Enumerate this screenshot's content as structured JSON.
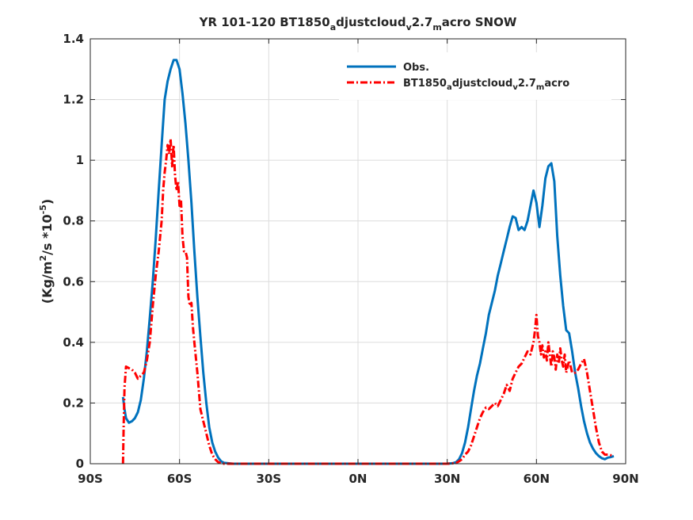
{
  "chart_data": {
    "type": "line",
    "title": {
      "main": "YR 101-120 BT1850",
      "sub1": "a",
      "mid1": "djustcloud",
      "sub2": "v",
      "mid2": "2.7",
      "sub3": "m",
      "tail": "acro SNOW"
    },
    "ylabel": {
      "prefix": "(Kg/m",
      "sup1": "2",
      "mid": "/s *10",
      "sup2": "-5",
      "suffix": ")"
    },
    "xlim": [
      -90,
      90
    ],
    "ylim": [
      0,
      1.4
    ],
    "xticks": [
      -90,
      -60,
      -30,
      0,
      30,
      60,
      90
    ],
    "xtick_labels": [
      "90S",
      "60S",
      "30S",
      "0N",
      "30N",
      "60N",
      "90N"
    ],
    "yticks": [
      0,
      0.2,
      0.4,
      0.6,
      0.8,
      1.0,
      1.2,
      1.4
    ],
    "ytick_labels": [
      "0",
      "0.2",
      "0.4",
      "0.6",
      "0.8",
      "1",
      "1.2",
      "1.4"
    ],
    "grid": true,
    "legend_position": "top-right",
    "series": [
      {
        "name": "Obs.",
        "color": "#0072BD",
        "style": "solid",
        "x": [
          -79,
          -78.5,
          -78,
          -77,
          -76,
          -75,
          -74,
          -73,
          -72,
          -71,
          -70,
          -69,
          -68,
          -67,
          -66,
          -65,
          -64,
          -63,
          -62,
          -61,
          -60,
          -59,
          -58,
          -57,
          -56,
          -55,
          -54,
          -53,
          -52,
          -51,
          -50,
          -49,
          -48,
          -47,
          -46,
          -45,
          -44,
          -43,
          -42,
          -40,
          -30,
          0,
          30,
          32,
          33,
          34,
          35,
          36,
          37,
          38,
          39,
          40,
          41,
          42,
          43,
          44,
          45,
          46,
          47,
          48,
          49,
          50,
          51,
          52,
          53,
          54,
          55,
          56,
          57,
          58,
          59,
          60,
          61,
          62,
          63,
          64,
          65,
          66,
          67,
          68,
          69,
          70,
          71,
          72,
          73,
          74,
          75,
          76,
          77,
          78,
          79,
          80,
          81,
          82,
          83,
          84,
          85,
          86
        ],
        "y": [
          0.22,
          0.18,
          0.15,
          0.135,
          0.14,
          0.15,
          0.17,
          0.21,
          0.28,
          0.37,
          0.48,
          0.6,
          0.74,
          0.9,
          1.05,
          1.2,
          1.26,
          1.3,
          1.33,
          1.33,
          1.3,
          1.22,
          1.12,
          1.0,
          0.86,
          0.7,
          0.55,
          0.42,
          0.3,
          0.2,
          0.12,
          0.07,
          0.04,
          0.02,
          0.008,
          0.003,
          0.002,
          0.001,
          0,
          0,
          0,
          0,
          0,
          0.002,
          0.005,
          0.015,
          0.035,
          0.07,
          0.12,
          0.18,
          0.24,
          0.29,
          0.33,
          0.38,
          0.43,
          0.49,
          0.53,
          0.57,
          0.62,
          0.66,
          0.7,
          0.74,
          0.78,
          0.815,
          0.81,
          0.77,
          0.78,
          0.77,
          0.8,
          0.85,
          0.9,
          0.86,
          0.78,
          0.85,
          0.94,
          0.98,
          0.99,
          0.93,
          0.75,
          0.62,
          0.52,
          0.44,
          0.43,
          0.37,
          0.3,
          0.25,
          0.19,
          0.14,
          0.1,
          0.07,
          0.05,
          0.035,
          0.025,
          0.018,
          0.015,
          0.02,
          0.022,
          0.025
        ]
      },
      {
        "name": "BT1850adjustcloudv2.7macro",
        "name_parts": {
          "a": "BT1850",
          "s1": "a",
          "b": "djustcloud",
          "s2": "v",
          "c": "2.7",
          "s3": "m",
          "d": "acro"
        },
        "color": "#FF0000",
        "style": "dashdot",
        "x": [
          -79,
          -78.8,
          -78.5,
          -78,
          -77,
          -76,
          -75,
          -74,
          -73,
          -72,
          -71,
          -70,
          -69,
          -68,
          -67,
          -66,
          -65.5,
          -65,
          -64.5,
          -64,
          -63.5,
          -63,
          -62.5,
          -62,
          -61.5,
          -61,
          -60.5,
          -60,
          -59.5,
          -59,
          -58.5,
          -58,
          -57.5,
          -57,
          -56.5,
          -56,
          -55.5,
          -55,
          -54.5,
          -54,
          -53.5,
          -53,
          -52,
          -51,
          -50,
          -49,
          -48,
          -47,
          -46,
          -45,
          -44,
          -40,
          -30,
          0,
          30,
          33,
          34,
          35,
          36,
          37,
          38,
          39,
          40,
          41,
          42,
          43,
          44,
          45,
          46,
          47,
          48,
          49,
          50,
          51,
          52,
          53,
          54,
          55,
          56,
          57,
          58,
          59,
          59.5,
          60,
          60.5,
          61,
          61.5,
          62,
          62.5,
          63,
          63.5,
          64,
          64.5,
          65,
          65.5,
          66,
          66.5,
          67,
          67.5,
          68,
          68.5,
          69,
          69.5,
          70,
          71,
          72,
          73,
          74,
          75,
          76,
          77,
          78,
          79,
          80,
          81,
          82,
          83,
          84,
          85,
          86
        ],
        "y": [
          0.0,
          0.12,
          0.25,
          0.32,
          0.315,
          0.31,
          0.3,
          0.28,
          0.29,
          0.3,
          0.34,
          0.4,
          0.52,
          0.62,
          0.7,
          0.8,
          0.9,
          0.96,
          1.0,
          1.05,
          1.02,
          1.07,
          0.98,
          1.05,
          0.95,
          0.9,
          0.93,
          0.85,
          0.87,
          0.75,
          0.7,
          0.7,
          0.68,
          0.55,
          0.52,
          0.53,
          0.45,
          0.4,
          0.35,
          0.3,
          0.24,
          0.18,
          0.14,
          0.1,
          0.06,
          0.03,
          0.015,
          0.005,
          0.002,
          0,
          0,
          0,
          0,
          0,
          0,
          0.002,
          0.008,
          0.015,
          0.03,
          0.04,
          0.06,
          0.09,
          0.12,
          0.15,
          0.17,
          0.185,
          0.18,
          0.19,
          0.2,
          0.19,
          0.21,
          0.23,
          0.26,
          0.24,
          0.28,
          0.3,
          0.32,
          0.33,
          0.35,
          0.37,
          0.36,
          0.4,
          0.44,
          0.49,
          0.42,
          0.4,
          0.36,
          0.39,
          0.35,
          0.37,
          0.34,
          0.4,
          0.36,
          0.32,
          0.37,
          0.35,
          0.31,
          0.36,
          0.33,
          0.38,
          0.34,
          0.32,
          0.36,
          0.3,
          0.34,
          0.3,
          0.3,
          0.31,
          0.33,
          0.345,
          0.3,
          0.24,
          0.18,
          0.12,
          0.07,
          0.04,
          0.03,
          0.03,
          0.028,
          0.027
        ]
      }
    ]
  }
}
